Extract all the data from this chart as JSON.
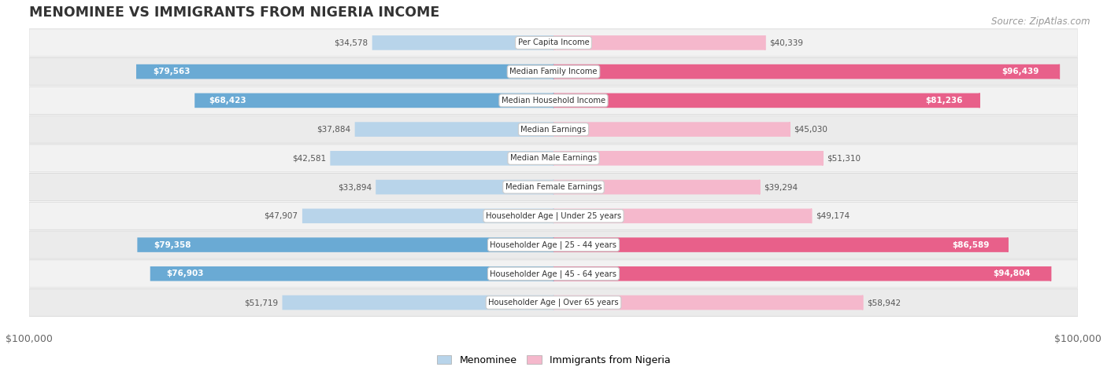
{
  "title": "MENOMINEE VS IMMIGRANTS FROM NIGERIA INCOME",
  "source": "Source: ZipAtlas.com",
  "categories": [
    "Per Capita Income",
    "Median Family Income",
    "Median Household Income",
    "Median Earnings",
    "Median Male Earnings",
    "Median Female Earnings",
    "Householder Age | Under 25 years",
    "Householder Age | 25 - 44 years",
    "Householder Age | 45 - 64 years",
    "Householder Age | Over 65 years"
  ],
  "menominee_values": [
    34578,
    79563,
    68423,
    37884,
    42581,
    33894,
    47907,
    79358,
    76903,
    51719
  ],
  "nigeria_values": [
    40339,
    96439,
    81236,
    45030,
    51310,
    39294,
    49174,
    86589,
    94804,
    58942
  ],
  "max_value": 100000,
  "menominee_color_light": "#b8d4ea",
  "menominee_color_dark": "#6aaad4",
  "nigeria_color_light": "#f5b8cc",
  "nigeria_color_dark": "#e8608a",
  "menominee_label": "Menominee",
  "nigeria_label": "Immigrants from Nigeria",
  "row_bg_even": "#f0f0f0",
  "row_bg_odd": "#e8e8e8",
  "title_color": "#333333",
  "large_threshold": 60000,
  "xlabel_left": "$100,000",
  "xlabel_right": "$100,000"
}
